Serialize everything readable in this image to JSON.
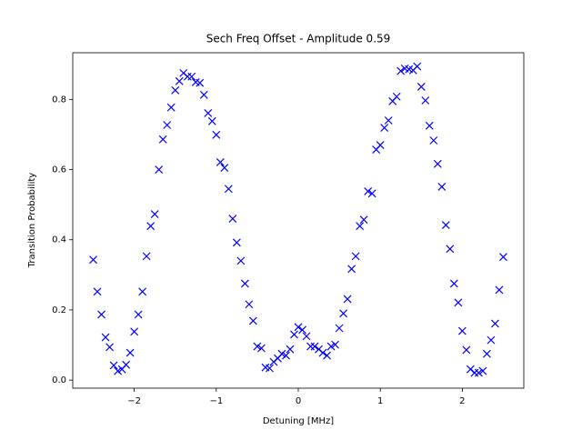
{
  "chart_data": {
    "type": "scatter",
    "title": "Sech Freq Offset - Amplitude 0.59",
    "x_label": "Detuning [MHz]",
    "y_label": "Transition Probability",
    "marker": "x",
    "color": "#0000ff",
    "x": [
      -2.5,
      -2.45,
      -2.4,
      -2.35,
      -2.3,
      -2.25,
      -2.2,
      -2.15,
      -2.1,
      -2.05,
      -2.0,
      -1.95,
      -1.9,
      -1.85,
      -1.8,
      -1.75,
      -1.7,
      -1.65,
      -1.6,
      -1.55,
      -1.5,
      -1.45,
      -1.4,
      -1.35,
      -1.3,
      -1.25,
      -1.2,
      -1.15,
      -1.1,
      -1.05,
      -1.0,
      -0.95,
      -0.9,
      -0.85,
      -0.8,
      -0.75,
      -0.7,
      -0.65,
      -0.6,
      -0.55,
      -0.5,
      -0.45,
      -0.4,
      -0.35,
      -0.3,
      -0.25,
      -0.2,
      -0.15,
      -0.1,
      -0.05,
      0.0,
      0.05,
      0.1,
      0.15,
      0.2,
      0.25,
      0.3,
      0.35,
      0.4,
      0.45,
      0.5,
      0.55,
      0.6,
      0.65,
      0.7,
      0.75,
      0.8,
      0.85,
      0.9,
      0.95,
      1.0,
      1.05,
      1.1,
      1.15,
      1.2,
      1.25,
      1.3,
      1.35,
      1.4,
      1.45,
      1.5,
      1.55,
      1.6,
      1.65,
      1.7,
      1.75,
      1.8,
      1.85,
      1.9,
      1.95,
      2.0,
      2.05,
      2.1,
      2.15,
      2.2,
      2.25,
      2.3,
      2.35,
      2.4,
      2.45,
      2.5
    ],
    "values": [
      0.343,
      0.252,
      0.187,
      0.122,
      0.094,
      0.042,
      0.026,
      0.031,
      0.044,
      0.078,
      0.138,
      0.187,
      0.252,
      0.353,
      0.439,
      0.473,
      0.6,
      0.686,
      0.727,
      0.777,
      0.826,
      0.852,
      0.875,
      0.865,
      0.865,
      0.849,
      0.847,
      0.813,
      0.761,
      0.738,
      0.699,
      0.621,
      0.605,
      0.545,
      0.46,
      0.392,
      0.34,
      0.275,
      0.216,
      0.169,
      0.096,
      0.091,
      0.036,
      0.034,
      0.052,
      0.062,
      0.075,
      0.07,
      0.088,
      0.13,
      0.151,
      0.143,
      0.125,
      0.096,
      0.096,
      0.088,
      0.078,
      0.07,
      0.096,
      0.101,
      0.148,
      0.19,
      0.231,
      0.317,
      0.353,
      0.439,
      0.457,
      0.538,
      0.532,
      0.657,
      0.67,
      0.719,
      0.74,
      0.795,
      0.808,
      0.881,
      0.888,
      0.886,
      0.883,
      0.894,
      0.836,
      0.797,
      0.725,
      0.683,
      0.616,
      0.551,
      0.442,
      0.374,
      0.275,
      0.221,
      0.14,
      0.086,
      0.031,
      0.021,
      0.021,
      0.026,
      0.075,
      0.114,
      0.161,
      0.257,
      0.351
    ],
    "xlim": [
      -2.75,
      2.75
    ],
    "ylim": [
      -0.023,
      0.933
    ],
    "xticks": [
      {
        "value": -2,
        "label": "−2"
      },
      {
        "value": -1,
        "label": "−1"
      },
      0,
      1,
      2
    ],
    "yticks": [
      {
        "value": 0,
        "label": "0.0"
      },
      0.2,
      0.4,
      0.6,
      0.8
    ]
  }
}
